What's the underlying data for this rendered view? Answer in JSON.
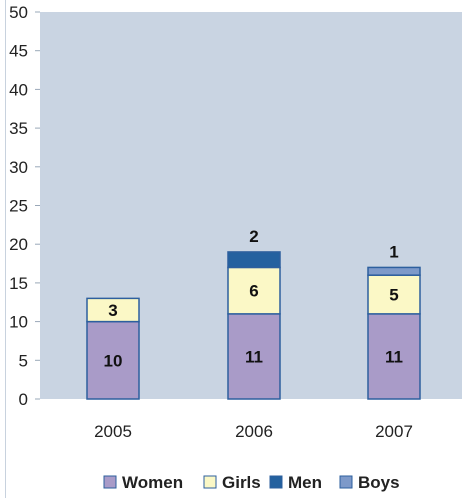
{
  "chart_data": {
    "type": "bar",
    "stacked": true,
    "title": "",
    "xlabel": "",
    "ylabel": "",
    "categories": [
      "2005",
      "2006",
      "2007"
    ],
    "ylim": [
      0,
      50
    ],
    "yticks": [
      0,
      5,
      10,
      15,
      20,
      25,
      30,
      35,
      40,
      45,
      50
    ],
    "grid": false,
    "legend_position": "bottom",
    "plot_background": "#c9d4e2",
    "series": [
      {
        "name": "Women",
        "color": "#a99bc8",
        "values": [
          10,
          11,
          11
        ],
        "labels": [
          "10",
          "11",
          "11"
        ],
        "label_placement": "inside"
      },
      {
        "name": "Girls",
        "color": "#fbf8c6",
        "values": [
          3,
          6,
          5
        ],
        "labels": [
          "3",
          "6",
          "5"
        ],
        "label_placement": "inside"
      },
      {
        "name": "Men",
        "color": "#24619f",
        "values": [
          0,
          2,
          0
        ],
        "labels": [
          "",
          "2",
          ""
        ],
        "label_placement": "above"
      },
      {
        "name": "Boys",
        "color": "#7d99c9",
        "values": [
          0,
          0,
          1
        ],
        "labels": [
          "",
          "",
          "1"
        ],
        "label_placement": "above"
      }
    ]
  }
}
